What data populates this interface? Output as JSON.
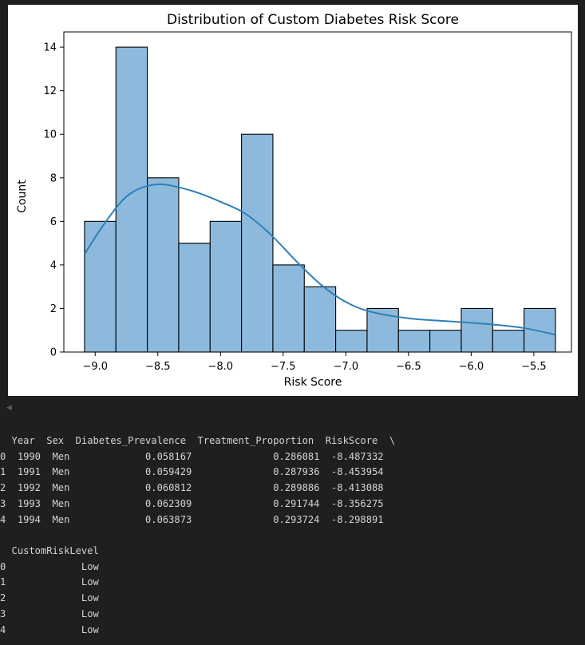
{
  "chart_data": {
    "type": "bar",
    "title": "Distribution of Custom Diabetes Risk Score",
    "xlabel": "Risk Score",
    "ylabel": "Count",
    "xlim": [
      -9.25,
      -5.2
    ],
    "ylim": [
      0,
      14.7
    ],
    "xticks": [
      -9.0,
      -8.5,
      -8.0,
      -7.5,
      -7.0,
      -6.5,
      -6.0,
      -5.5
    ],
    "xtick_labels": [
      "−9.0",
      "−8.5",
      "−8.0",
      "−7.5",
      "−7.0",
      "−6.5",
      "−6.0",
      "−5.5"
    ],
    "yticks": [
      0,
      2,
      4,
      6,
      8,
      10,
      12,
      14
    ],
    "ytick_labels": [
      "0",
      "2",
      "4",
      "6",
      "8",
      "10",
      "12",
      "14"
    ],
    "bins": {
      "start": -9.085,
      "width": 0.2505,
      "counts": [
        6,
        14,
        8,
        5,
        6,
        10,
        4,
        3,
        1,
        2,
        1,
        1,
        2,
        1,
        2
      ]
    },
    "kde": {
      "x": [
        -9.085,
        -8.95,
        -8.8,
        -8.7,
        -8.6,
        -8.5,
        -8.4,
        -8.2,
        -8.0,
        -7.8,
        -7.6,
        -7.4,
        -7.2,
        -7.0,
        -6.8,
        -6.5,
        -6.2,
        -5.9,
        -5.6,
        -5.33
      ],
      "y": [
        4.5,
        5.7,
        6.85,
        7.35,
        7.6,
        7.7,
        7.65,
        7.35,
        6.9,
        6.35,
        5.4,
        4.2,
        3.1,
        2.3,
        1.85,
        1.55,
        1.42,
        1.3,
        1.12,
        0.8
      ]
    },
    "bar_color": "#8dbadc",
    "line_color": "#2e7fb8",
    "grid": false
  },
  "dataframe": {
    "header1": "  Year  Sex  Diabetes_Prevalence  Treatment_Proportion  RiskScore  \\",
    "rows1": [
      "0  1990  Men             0.058167              0.286081  -8.487332",
      "1  1991  Men             0.059429              0.287936  -8.453954",
      "2  1992  Men             0.060812              0.289886  -8.413088",
      "3  1993  Men             0.062309              0.291744  -8.356275",
      "4  1994  Men             0.063873              0.293724  -8.298891"
    ],
    "header2": "  CustomRiskLevel",
    "rows2": [
      "0             Low",
      "1             Low",
      "2             Low",
      "3             Low",
      "4             Low"
    ]
  },
  "scroll_indicator": "◀"
}
